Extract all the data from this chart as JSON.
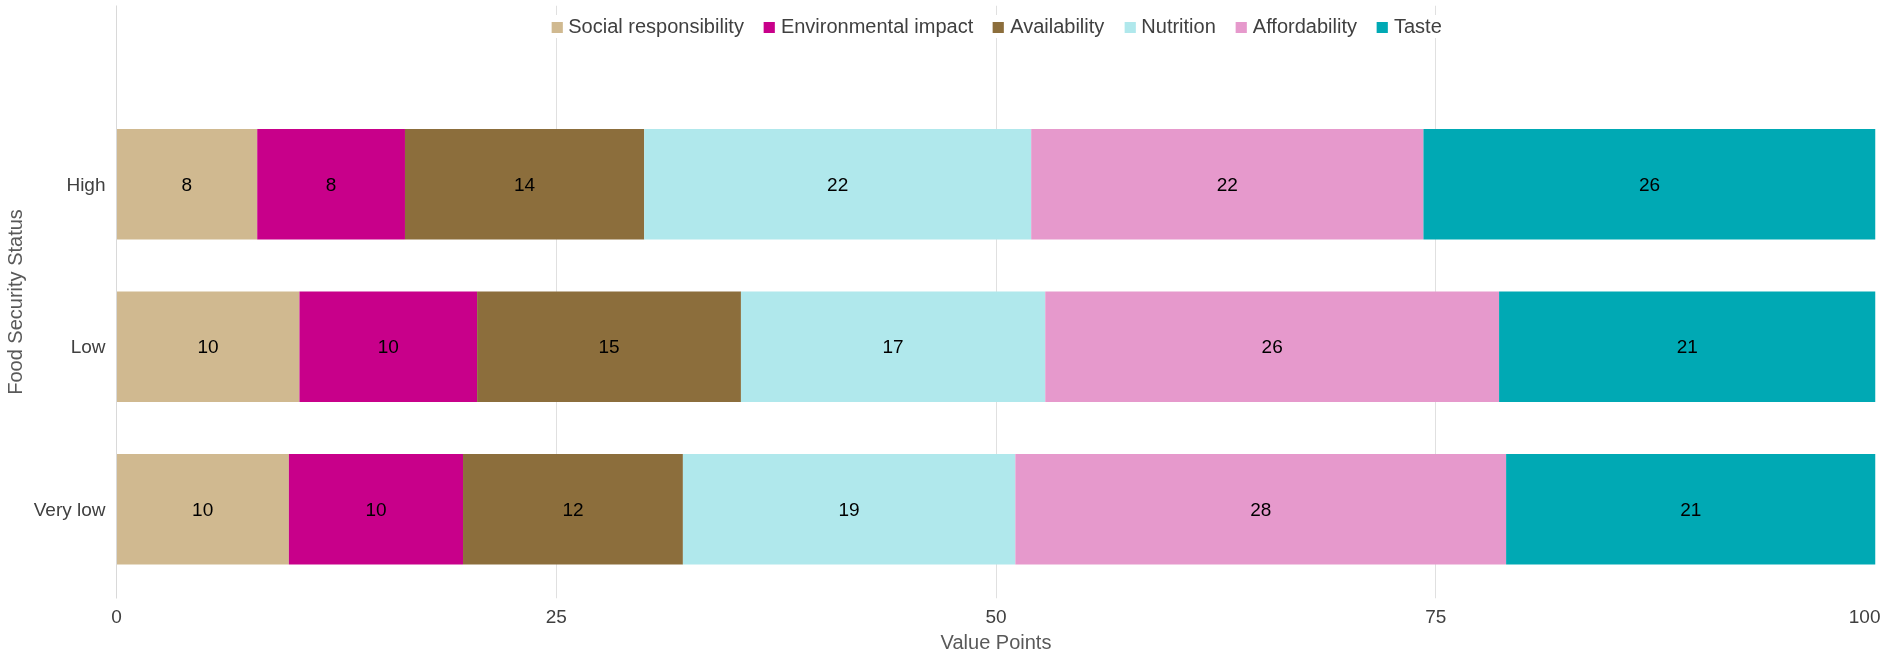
{
  "chart_data": {
    "type": "bar",
    "orientation": "horizontal",
    "stacked": true,
    "categories": [
      "High",
      "Low",
      "Very low"
    ],
    "series": [
      {
        "name": "Social responsibility",
        "color": "#d0b990",
        "values": [
          8.0,
          10.4,
          9.8
        ],
        "value_labels": [
          "8",
          "10",
          "10"
        ]
      },
      {
        "name": "Environmental impact",
        "color": "#c8008a",
        "values": [
          8.4,
          10.1,
          9.9
        ],
        "value_labels": [
          "8",
          "10",
          "10"
        ]
      },
      {
        "name": "Availability",
        "color": "#8c6e3c",
        "values": [
          13.6,
          15.0,
          12.5
        ],
        "value_labels": [
          "14",
          "15",
          "12"
        ]
      },
      {
        "name": "Nutrition",
        "color": "#b0e8ec",
        "values": [
          22.0,
          17.3,
          18.9
        ],
        "value_labels": [
          "22",
          "17",
          "19"
        ]
      },
      {
        "name": "Affordability",
        "color": "#e699cc",
        "values": [
          22.3,
          25.8,
          27.9
        ],
        "value_labels": [
          "22",
          "26",
          "28"
        ]
      },
      {
        "name": "Taste",
        "color": "#00a9b4",
        "values": [
          25.7,
          21.4,
          21.0
        ],
        "value_labels": [
          "26",
          "21",
          "21"
        ]
      }
    ],
    "xlim": [
      0,
      100
    ],
    "xticks": [
      0,
      25,
      50,
      75,
      100
    ],
    "xlabel": "Value Points",
    "ylabel": "Food Security Status",
    "grid": "x",
    "legend": "top"
  }
}
